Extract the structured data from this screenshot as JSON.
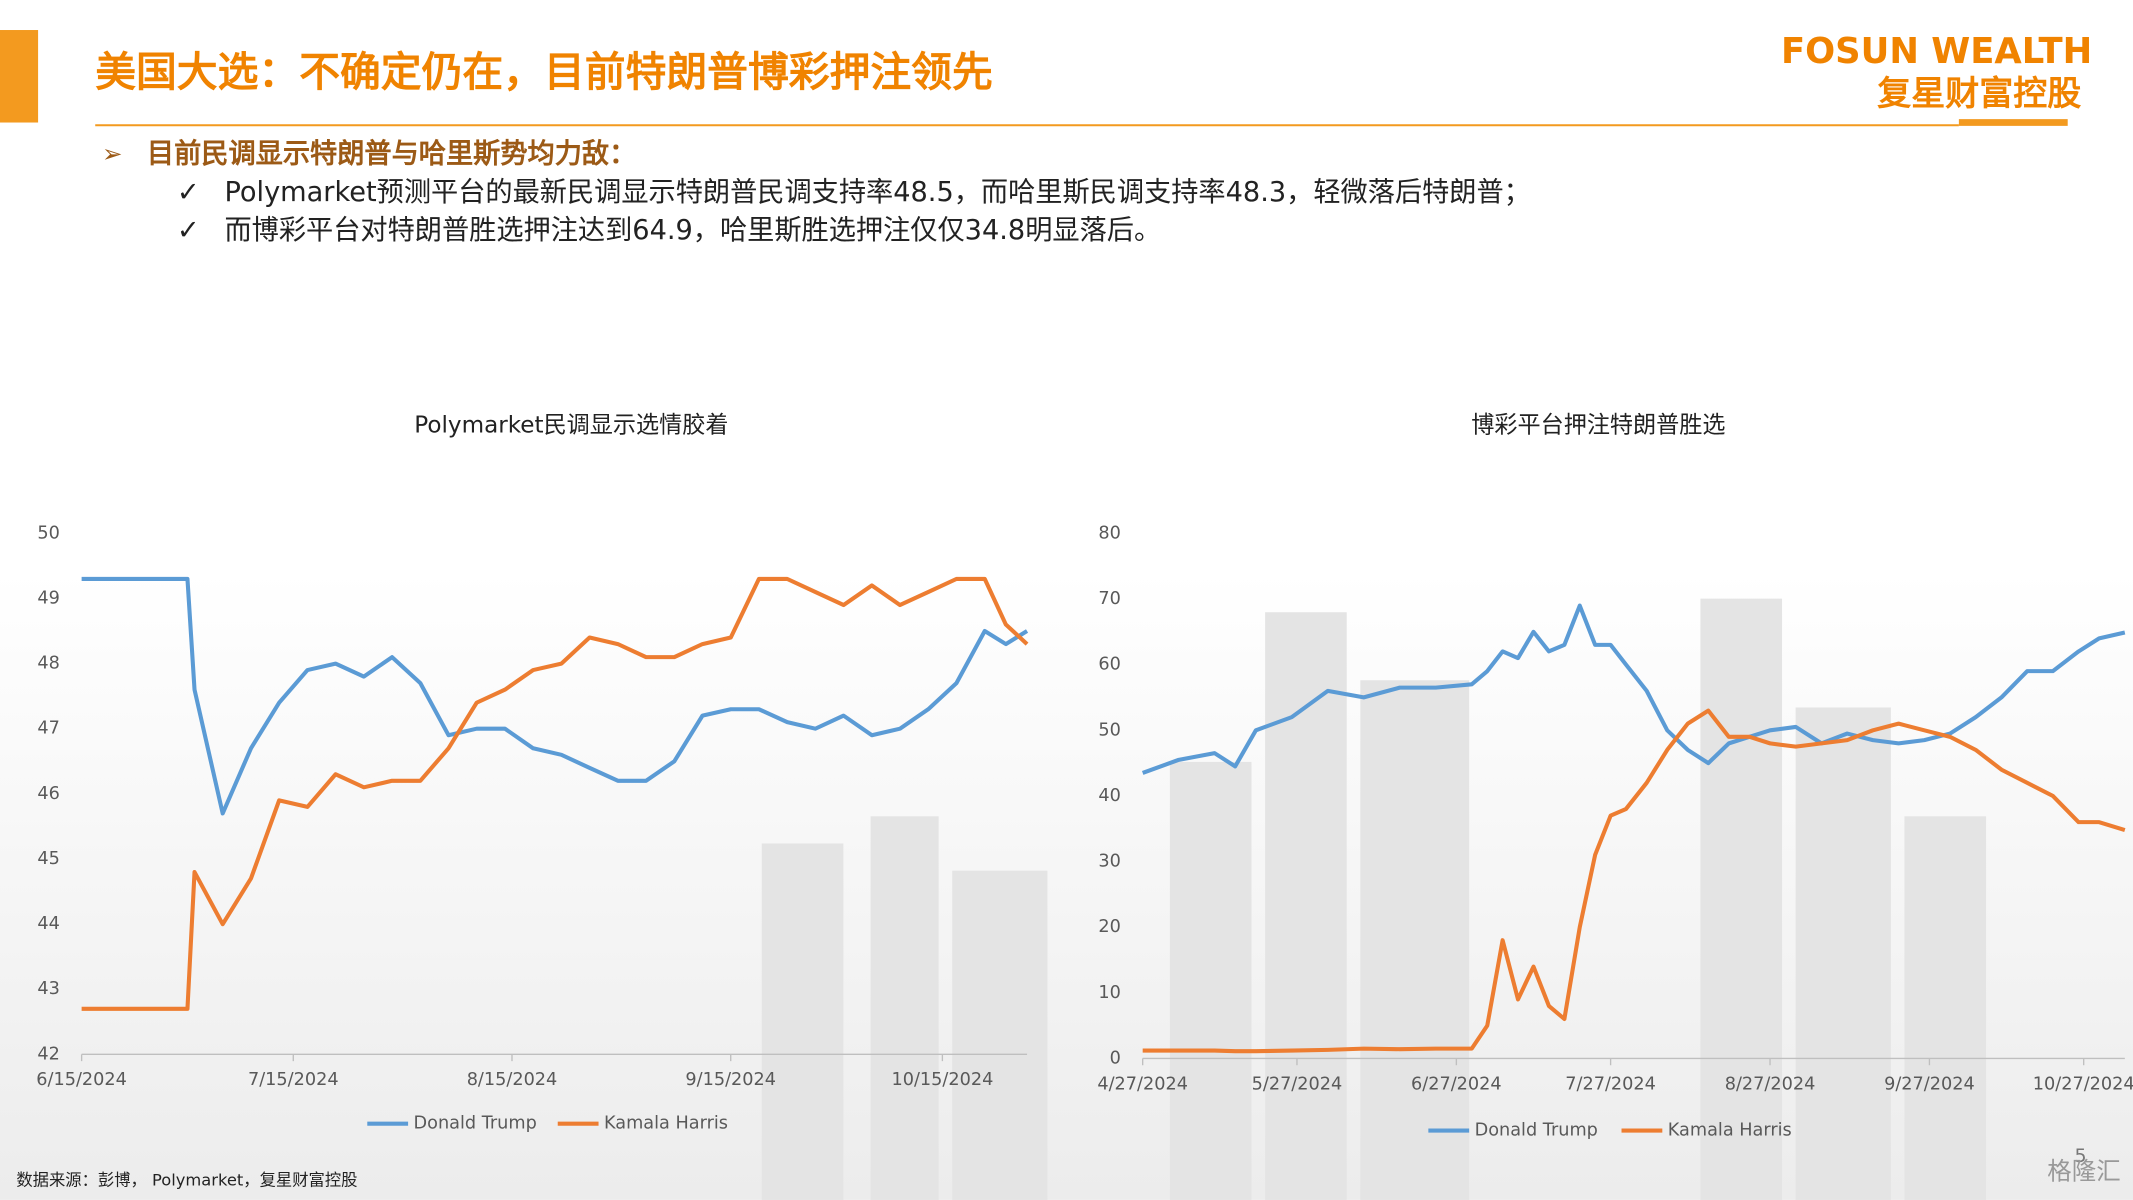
{
  "header": {
    "title": "美国大选：不确定仍在，目前特朗普博彩押注领先",
    "logo_en": "FOSUN WEALTH",
    "logo_cn": "复星财富控股"
  },
  "bullets": {
    "heading": "目前民调显示特朗普与哈里斯势均力敌：",
    "items": [
      "Polymarket预测平台的最新民调显示特朗普民调支持率48.5，而哈里斯民调支持率48.3，轻微落后特朗普；",
      "而博彩平台对特朗普胜选押注达到64.9，哈里斯胜选押注仅仅34.8明显落后。"
    ]
  },
  "chart_data": [
    {
      "type": "line",
      "title": "Polymarket民调显示选情胶着",
      "x": [
        "6/15/2024",
        "6/30/2024",
        "7/1/2024",
        "7/5/2024",
        "7/9/2024",
        "7/13/2024",
        "7/17/2024",
        "7/21/2024",
        "7/25/2024",
        "7/29/2024",
        "8/2/2024",
        "8/6/2024",
        "8/10/2024",
        "8/14/2024",
        "8/18/2024",
        "8/22/2024",
        "8/26/2024",
        "8/30/2024",
        "9/3/2024",
        "9/7/2024",
        "9/11/2024",
        "9/15/2024",
        "9/19/2024",
        "9/23/2024",
        "9/27/2024",
        "10/1/2024",
        "10/5/2024",
        "10/9/2024",
        "10/13/2024",
        "10/17/2024",
        "10/21/2024",
        "10/24/2024",
        "10/27/2024"
      ],
      "series": [
        {
          "name": "Donald Trump",
          "color": "#5B9BD5",
          "values": [
            49.3,
            49.3,
            47.6,
            45.7,
            46.7,
            47.4,
            47.9,
            48.0,
            47.8,
            48.1,
            47.7,
            46.9,
            47.0,
            47.0,
            46.7,
            46.6,
            46.4,
            46.2,
            46.2,
            46.5,
            47.2,
            47.3,
            47.3,
            47.1,
            47.0,
            47.2,
            46.9,
            47.0,
            47.3,
            47.7,
            48.5,
            48.3,
            48.5
          ]
        },
        {
          "name": "Kamala Harris",
          "color": "#ED7D31",
          "values": [
            42.7,
            42.7,
            44.8,
            44.0,
            44.7,
            45.9,
            45.8,
            46.3,
            46.1,
            46.2,
            46.2,
            46.7,
            47.4,
            47.6,
            47.9,
            48.0,
            48.4,
            48.3,
            48.1,
            48.1,
            48.3,
            48.4,
            49.3,
            49.3,
            49.1,
            48.9,
            49.2,
            48.9,
            49.1,
            49.3,
            49.3,
            48.6,
            48.3
          ]
        }
      ],
      "xlim": [
        "6/15/2024",
        "10/27/2024"
      ],
      "xticks": [
        "6/15/2024",
        "7/15/2024",
        "8/15/2024",
        "9/15/2024",
        "10/15/2024"
      ],
      "ylim": [
        42,
        50
      ],
      "yticks": [
        42,
        43,
        44,
        45,
        46,
        47,
        48,
        49,
        50
      ],
      "grid": false
    },
    {
      "type": "line",
      "title": "博彩平台押注特朗普胜选",
      "x": [
        "4/27/2024",
        "5/4/2024",
        "5/11/2024",
        "5/15/2024",
        "5/19/2024",
        "5/26/2024",
        "6/2/2024",
        "6/9/2024",
        "6/16/2024",
        "6/23/2024",
        "6/30/2024",
        "7/3/2024",
        "7/6/2024",
        "7/9/2024",
        "7/12/2024",
        "7/15/2024",
        "7/18/2024",
        "7/21/2024",
        "7/24/2024",
        "7/27/2024",
        "7/30/2024",
        "8/3/2024",
        "8/7/2024",
        "8/11/2024",
        "8/15/2024",
        "8/19/2024",
        "8/23/2024",
        "8/27/2024",
        "9/1/2024",
        "9/6/2024",
        "9/11/2024",
        "9/16/2024",
        "9/21/2024",
        "9/26/2024",
        "10/1/2024",
        "10/6/2024",
        "10/11/2024",
        "10/16/2024",
        "10/21/2024",
        "10/26/2024",
        "10/30/2024",
        "11/4/2024"
      ],
      "series": [
        {
          "name": "Donald Trump",
          "color": "#5B9BD5",
          "values": [
            43.5,
            45.5,
            46.5,
            44.5,
            50,
            52,
            56,
            55,
            56.5,
            56.5,
            57,
            59,
            62,
            61,
            65,
            62,
            63,
            69,
            63,
            63,
            60,
            56,
            50,
            47,
            45,
            48,
            49,
            50,
            50.5,
            48,
            49.5,
            48.5,
            48,
            48.5,
            49.5,
            52,
            55,
            59,
            59,
            62,
            64,
            64.9
          ]
        },
        {
          "name": "Kamala Harris",
          "color": "#ED7D31",
          "values": [
            1.2,
            1.2,
            1.2,
            1.1,
            1.1,
            1.2,
            1.3,
            1.5,
            1.4,
            1.5,
            1.5,
            5,
            18,
            9,
            14,
            8,
            6,
            20,
            31,
            37,
            38,
            42,
            47,
            51,
            53,
            49,
            49,
            48,
            47.5,
            48,
            48.5,
            50,
            51,
            50,
            49,
            47,
            44,
            42,
            40,
            36,
            36,
            34.8
          ]
        }
      ],
      "xlim": [
        "4/27/2024",
        "11/4/2024"
      ],
      "xticks": [
        "4/27/2024",
        "5/27/2024",
        "6/27/2024",
        "7/27/2024",
        "8/27/2024",
        "9/27/2024",
        "10/27/2024"
      ],
      "ylim": [
        0,
        80
      ],
      "yticks": [
        0,
        10,
        20,
        30,
        40,
        50,
        60,
        70,
        80
      ],
      "grid": false
    }
  ],
  "footer": {
    "source": "数据来源：彭博， Polymarket，复星财富控股",
    "page": "5",
    "watermark": "格隆汇"
  }
}
